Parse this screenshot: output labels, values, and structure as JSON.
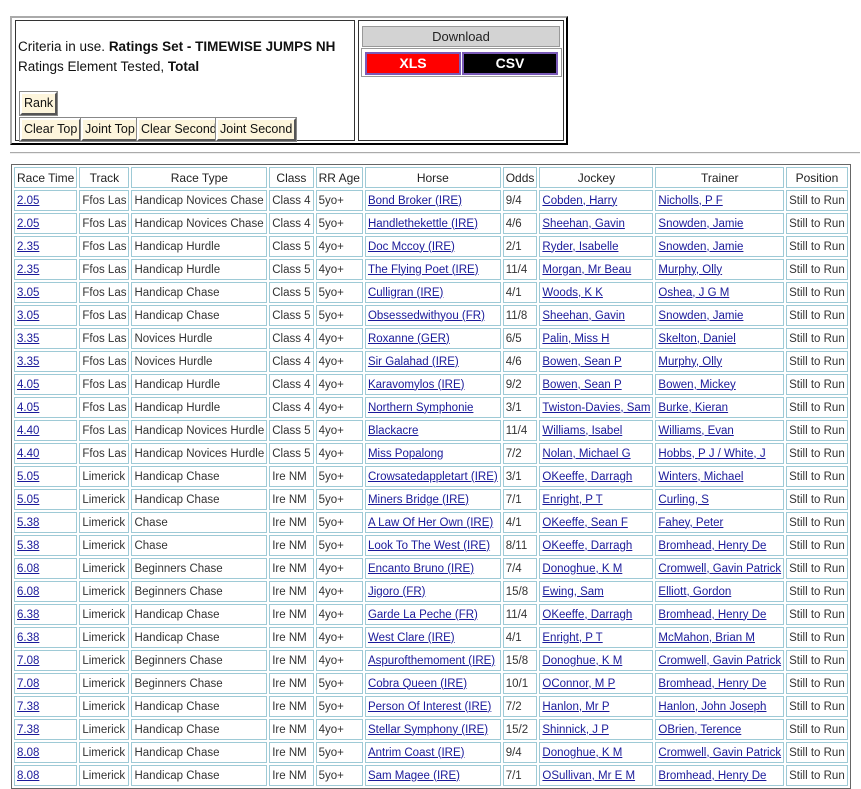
{
  "criteria": {
    "line1_prefix": "Criteria in use.",
    "line1_bold": "Ratings Set - TIMEWISE JUMPS NH",
    "line2_prefix": "Ratings Element Tested,",
    "line2_bold": "Total"
  },
  "buttons": {
    "rank": "Rank",
    "clear_top": "Clear Top",
    "joint_top": "Joint Top",
    "clear_second": "Clear Second",
    "joint_second": "Joint Second"
  },
  "download": {
    "title": "Download",
    "xls": "XLS",
    "csv": "CSV",
    "xls_color": "#ff0000",
    "csv_color": "#000000"
  },
  "table": {
    "headers": [
      "Race Time",
      "Track",
      "Race Type",
      "Class",
      "RR Age",
      "Horse",
      "Odds",
      "Jockey",
      "Trainer",
      "Position"
    ],
    "rows": [
      [
        "2.05",
        "Ffos Las",
        "Handicap Novices Chase",
        "Class 4",
        "5yo+",
        "Bond Broker (IRE)",
        "9/4",
        "Cobden, Harry",
        "Nicholls, P F",
        "Still to Run"
      ],
      [
        "2.05",
        "Ffos Las",
        "Handicap Novices Chase",
        "Class 4",
        "5yo+",
        "Handlethekettle (IRE)",
        "4/6",
        "Sheehan, Gavin",
        "Snowden, Jamie",
        "Still to Run"
      ],
      [
        "2.35",
        "Ffos Las",
        "Handicap Hurdle",
        "Class 5",
        "4yo+",
        "Doc Mccoy (IRE)",
        "2/1",
        "Ryder, Isabelle",
        "Snowden, Jamie",
        "Still to Run"
      ],
      [
        "2.35",
        "Ffos Las",
        "Handicap Hurdle",
        "Class 5",
        "4yo+",
        "The Flying Poet (IRE)",
        "11/4",
        "Morgan, Mr Beau",
        "Murphy, Olly",
        "Still to Run"
      ],
      [
        "3.05",
        "Ffos Las",
        "Handicap Chase",
        "Class 5",
        "5yo+",
        "Culligran (IRE)",
        "4/1",
        "Woods, K K",
        "Oshea, J G M",
        "Still to Run"
      ],
      [
        "3.05",
        "Ffos Las",
        "Handicap Chase",
        "Class 5",
        "5yo+",
        "Obsessedwithyou (FR)",
        "11/8",
        "Sheehan, Gavin",
        "Snowden, Jamie",
        "Still to Run"
      ],
      [
        "3.35",
        "Ffos Las",
        "Novices Hurdle",
        "Class 4",
        "4yo+",
        "Roxanne (GER)",
        "6/5",
        "Palin, Miss H",
        "Skelton, Daniel",
        "Still to Run"
      ],
      [
        "3.35",
        "Ffos Las",
        "Novices Hurdle",
        "Class 4",
        "4yo+",
        "Sir Galahad (IRE)",
        "4/6",
        "Bowen, Sean P",
        "Murphy, Olly",
        "Still to Run"
      ],
      [
        "4.05",
        "Ffos Las",
        "Handicap Hurdle",
        "Class 4",
        "4yo+",
        "Karavomylos (IRE)",
        "9/2",
        "Bowen, Sean P",
        "Bowen, Mickey",
        "Still to Run"
      ],
      [
        "4.05",
        "Ffos Las",
        "Handicap Hurdle",
        "Class 4",
        "4yo+",
        "Northern Symphonie",
        "3/1",
        "Twiston-Davies, Sam",
        "Burke, Kieran",
        "Still to Run"
      ],
      [
        "4.40",
        "Ffos Las",
        "Handicap Novices Hurdle",
        "Class 5",
        "4yo+",
        "Blackacre",
        "11/4",
        "Williams, Isabel",
        "Williams, Evan",
        "Still to Run"
      ],
      [
        "4.40",
        "Ffos Las",
        "Handicap Novices Hurdle",
        "Class 5",
        "4yo+",
        "Miss Popalong",
        "7/2",
        "Nolan, Michael G",
        "Hobbs, P J / White, J",
        "Still to Run"
      ],
      [
        "5.05",
        "Limerick",
        "Handicap Chase",
        "Ire NM",
        "5yo+",
        "Crowsatedappletart (IRE)",
        "3/1",
        "OKeeffe, Darragh",
        "Winters, Michael",
        "Still to Run"
      ],
      [
        "5.05",
        "Limerick",
        "Handicap Chase",
        "Ire NM",
        "5yo+",
        "Miners Bridge (IRE)",
        "7/1",
        "Enright, P T",
        "Curling, S",
        "Still to Run"
      ],
      [
        "5.38",
        "Limerick",
        "Chase",
        "Ire NM",
        "5yo+",
        "A Law Of Her Own (IRE)",
        "4/1",
        "OKeeffe, Sean F",
        "Fahey, Peter",
        "Still to Run"
      ],
      [
        "5.38",
        "Limerick",
        "Chase",
        "Ire NM",
        "5yo+",
        "Look To The West (IRE)",
        "8/11",
        "OKeeffe, Darragh",
        "Bromhead, Henry De",
        "Still to Run"
      ],
      [
        "6.08",
        "Limerick",
        "Beginners Chase",
        "Ire NM",
        "4yo+",
        "Encanto Bruno (IRE)",
        "7/4",
        "Donoghue, K M",
        "Cromwell, Gavin Patrick",
        "Still to Run"
      ],
      [
        "6.08",
        "Limerick",
        "Beginners Chase",
        "Ire NM",
        "4yo+",
        "Jigoro (FR)",
        "15/8",
        "Ewing, Sam",
        "Elliott, Gordon",
        "Still to Run"
      ],
      [
        "6.38",
        "Limerick",
        "Handicap Chase",
        "Ire NM",
        "4yo+",
        "Garde La Peche (FR)",
        "11/4",
        "OKeeffe, Darragh",
        "Bromhead, Henry De",
        "Still to Run"
      ],
      [
        "6.38",
        "Limerick",
        "Handicap Chase",
        "Ire NM",
        "4yo+",
        "West Clare (IRE)",
        "4/1",
        "Enright, P T",
        "McMahon, Brian M",
        "Still to Run"
      ],
      [
        "7.08",
        "Limerick",
        "Beginners Chase",
        "Ire NM",
        "4yo+",
        "Aspurofthemoment (IRE)",
        "15/8",
        "Donoghue, K M",
        "Cromwell, Gavin Patrick",
        "Still to Run"
      ],
      [
        "7.08",
        "Limerick",
        "Beginners Chase",
        "Ire NM",
        "5yo+",
        "Cobra Queen (IRE)",
        "10/1",
        "OConnor, M P",
        "Bromhead, Henry De",
        "Still to Run"
      ],
      [
        "7.38",
        "Limerick",
        "Handicap Chase",
        "Ire NM",
        "5yo+",
        "Person Of Interest (IRE)",
        "7/2",
        "Hanlon, Mr P",
        "Hanlon, John Joseph",
        "Still to Run"
      ],
      [
        "7.38",
        "Limerick",
        "Handicap Chase",
        "Ire NM",
        "4yo+",
        "Stellar Symphony (IRE)",
        "15/2",
        "Shinnick, J P",
        "OBrien, Terence",
        "Still to Run"
      ],
      [
        "8.08",
        "Limerick",
        "Handicap Chase",
        "Ire NM",
        "5yo+",
        "Antrim Coast (IRE)",
        "9/4",
        "Donoghue, K M",
        "Cromwell, Gavin Patrick",
        "Still to Run"
      ],
      [
        "8.08",
        "Limerick",
        "Handicap Chase",
        "Ire NM",
        "5yo+",
        "Sam Magee (IRE)",
        "7/1",
        "OSullivan, Mr E M",
        "Bromhead, Henry De",
        "Still to Run"
      ]
    ]
  }
}
